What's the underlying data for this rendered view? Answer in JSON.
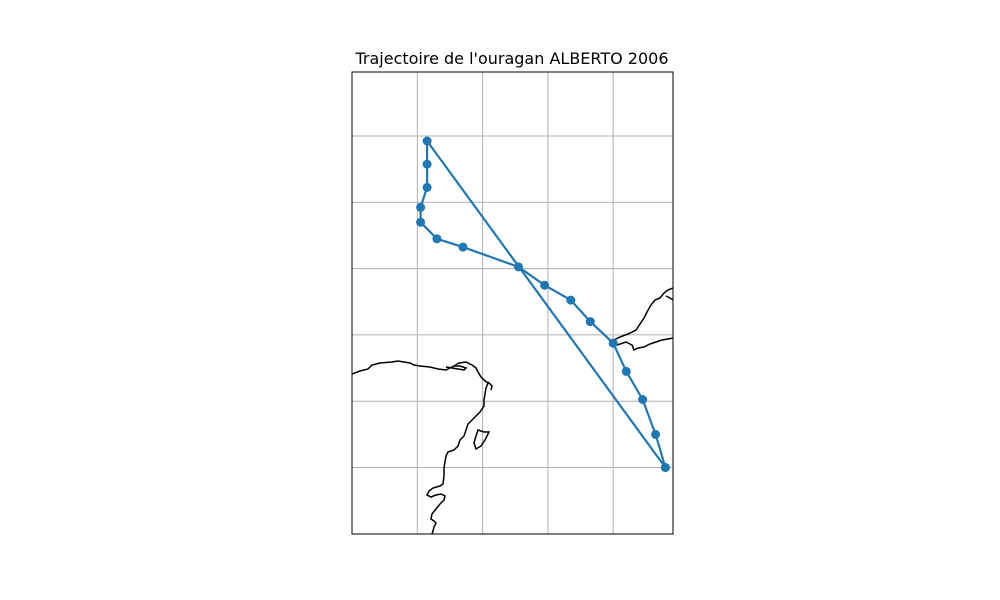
{
  "chart_data": {
    "type": "map",
    "title": "Trajectoire de l'ouragan ALBERTO 2006",
    "grid": true,
    "legend": "",
    "series": [
      {
        "color": "#1f77b4",
        "marker": "circle",
        "points": [
          {
            "lon": -85.2,
            "lat": 19.9
          },
          {
            "lon": -85.35,
            "lat": 20.9
          },
          {
            "lon": -85.55,
            "lat": 21.95
          },
          {
            "lon": -85.8,
            "lat": 22.8
          },
          {
            "lon": -86.0,
            "lat": 23.65
          },
          {
            "lon": -86.35,
            "lat": 24.3
          },
          {
            "lon": -86.65,
            "lat": 24.95
          },
          {
            "lon": -87.05,
            "lat": 25.4
          },
          {
            "lon": -87.45,
            "lat": 25.95
          },
          {
            "lon": -88.3,
            "lat": 26.55
          },
          {
            "lon": -88.7,
            "lat": 26.8
          },
          {
            "lon": -88.95,
            "lat": 27.3
          },
          {
            "lon": -88.95,
            "lat": 27.75
          },
          {
            "lon": -88.85,
            "lat": 28.35
          },
          {
            "lon": -88.85,
            "lat": 29.05
          },
          {
            "lon": -88.85,
            "lat": 29.75
          },
          {
            "lon": -85.2,
            "lat": 19.9
          }
        ]
      }
    ],
    "coastline_color": "#000000",
    "grid_color": "#b0b0b0"
  }
}
